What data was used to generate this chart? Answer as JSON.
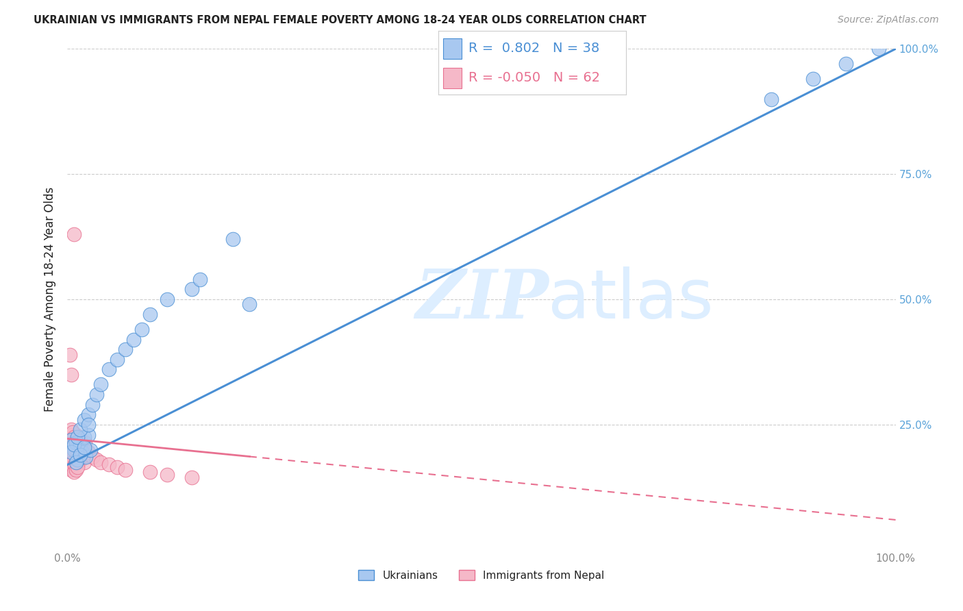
{
  "title": "UKRAINIAN VS IMMIGRANTS FROM NEPAL FEMALE POVERTY AMONG 18-24 YEAR OLDS CORRELATION CHART",
  "source": "Source: ZipAtlas.com",
  "ylabel": "Female Poverty Among 18-24 Year Olds",
  "watermark_zip": "ZIP",
  "watermark_atlas": "atlas",
  "blue_R": 0.802,
  "blue_N": 38,
  "pink_R": -0.05,
  "pink_N": 62,
  "blue_dot_color": "#a8c8f0",
  "pink_dot_color": "#f5b8c8",
  "blue_line_color": "#4a8fd4",
  "pink_line_color": "#e87090",
  "title_color": "#222222",
  "source_color": "#999999",
  "right_tick_color": "#5ba3d9",
  "left_tick_color": "#888888",
  "grid_color": "#cccccc",
  "background_color": "#ffffff",
  "tick_fontsize": 11,
  "axis_label_fontsize": 12,
  "title_fontsize": 10.5,
  "source_fontsize": 10,
  "legend_fontsize": 14,
  "blue_scatter_x": [
    0.005,
    0.008,
    0.01,
    0.012,
    0.015,
    0.018,
    0.02,
    0.022,
    0.025,
    0.028,
    0.005,
    0.008,
    0.012,
    0.015,
    0.02,
    0.025,
    0.03,
    0.035,
    0.04,
    0.05,
    0.06,
    0.07,
    0.08,
    0.09,
    0.1,
    0.12,
    0.15,
    0.16,
    0.01,
    0.015,
    0.02,
    0.025,
    0.2,
    0.22,
    0.85,
    0.9,
    0.94,
    0.98
  ],
  "blue_scatter_y": [
    0.22,
    0.2,
    0.215,
    0.18,
    0.21,
    0.195,
    0.225,
    0.185,
    0.23,
    0.2,
    0.195,
    0.21,
    0.225,
    0.24,
    0.26,
    0.27,
    0.29,
    0.31,
    0.33,
    0.36,
    0.38,
    0.4,
    0.42,
    0.44,
    0.47,
    0.5,
    0.52,
    0.54,
    0.175,
    0.19,
    0.205,
    0.25,
    0.62,
    0.49,
    0.9,
    0.94,
    0.97,
    1.0
  ],
  "pink_scatter_x": [
    0.002,
    0.003,
    0.004,
    0.005,
    0.005,
    0.006,
    0.006,
    0.007,
    0.007,
    0.008,
    0.008,
    0.009,
    0.01,
    0.01,
    0.01,
    0.011,
    0.012,
    0.012,
    0.013,
    0.014,
    0.015,
    0.015,
    0.016,
    0.017,
    0.018,
    0.019,
    0.02,
    0.02,
    0.021,
    0.022,
    0.003,
    0.004,
    0.005,
    0.006,
    0.007,
    0.008,
    0.009,
    0.01,
    0.011,
    0.012,
    0.004,
    0.005,
    0.006,
    0.008,
    0.01,
    0.012,
    0.015,
    0.018,
    0.02,
    0.025,
    0.03,
    0.035,
    0.04,
    0.05,
    0.06,
    0.07,
    0.1,
    0.12,
    0.15,
    0.008,
    0.003,
    0.005
  ],
  "pink_scatter_y": [
    0.2,
    0.18,
    0.21,
    0.195,
    0.215,
    0.185,
    0.22,
    0.175,
    0.205,
    0.19,
    0.225,
    0.17,
    0.2,
    0.215,
    0.23,
    0.185,
    0.195,
    0.21,
    0.175,
    0.205,
    0.19,
    0.22,
    0.18,
    0.195,
    0.21,
    0.185,
    0.175,
    0.2,
    0.215,
    0.19,
    0.165,
    0.17,
    0.16,
    0.175,
    0.165,
    0.155,
    0.17,
    0.16,
    0.175,
    0.165,
    0.23,
    0.24,
    0.235,
    0.225,
    0.22,
    0.215,
    0.21,
    0.205,
    0.2,
    0.195,
    0.185,
    0.18,
    0.175,
    0.17,
    0.165,
    0.16,
    0.155,
    0.15,
    0.145,
    0.63,
    0.39,
    0.35
  ]
}
